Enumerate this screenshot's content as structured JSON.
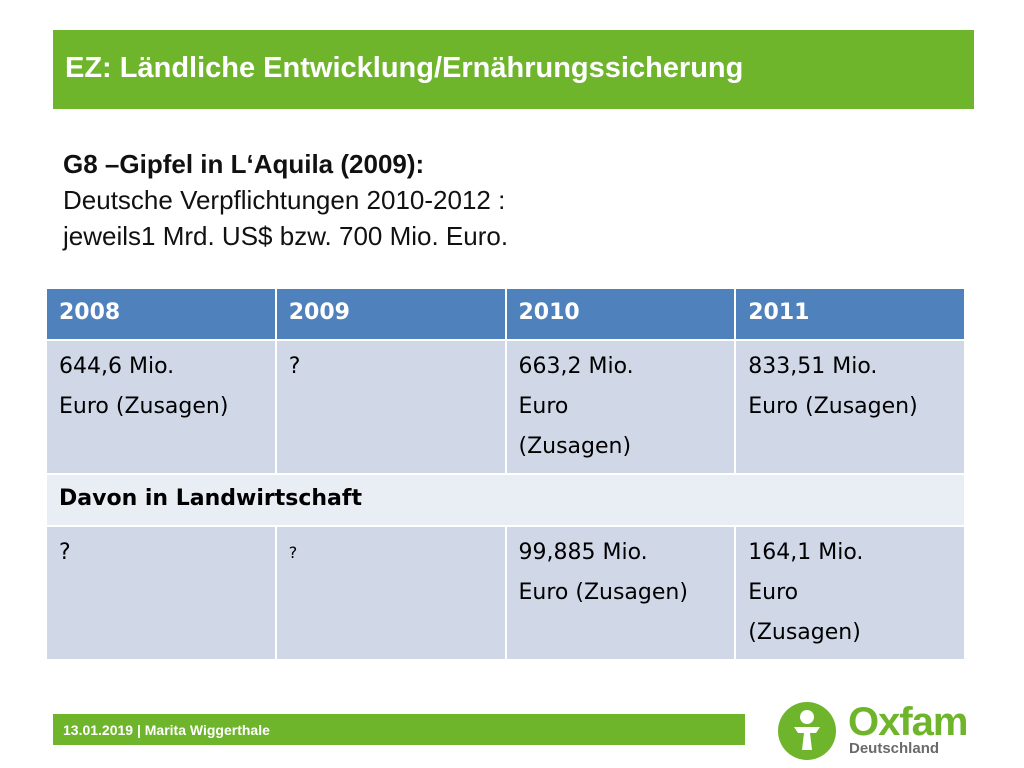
{
  "header": {
    "title": "EZ: Ländliche Entwicklung/Ernährungssicherung"
  },
  "intro": {
    "heading": "G8 –Gipfel in L‘Aquila (2009):",
    "lines": [
      "Deutsche Verpflichtungen 2010-2012 :",
      "jeweils1 Mrd. US$  bzw. 700 Mio. Euro."
    ]
  },
  "table": {
    "header": [
      "2008",
      "2009",
      "2010",
      "2011"
    ],
    "rows": [
      [
        [
          "644,6 Mio.",
          "Euro (Zusagen)"
        ],
        [
          "?"
        ],
        [
          "663,2 Mio.",
          "Euro",
          "(Zusagen)"
        ],
        [
          "833,51 Mio.",
          "Euro (Zusagen)"
        ]
      ],
      [
        [
          "Davon in Landwirtschaft"
        ]
      ],
      [
        [
          "?"
        ],
        [
          "?"
        ],
        [
          "99,885 Mio.",
          "Euro (Zusagen)"
        ],
        [
          "164,1 Mio.",
          "Euro",
          "(Zusagen)"
        ]
      ]
    ]
  },
  "footer": {
    "text": "13.01.2019 | Marita Wiggerthale",
    "logo_name": "Oxfam",
    "logo_sub": "Deutschland"
  }
}
